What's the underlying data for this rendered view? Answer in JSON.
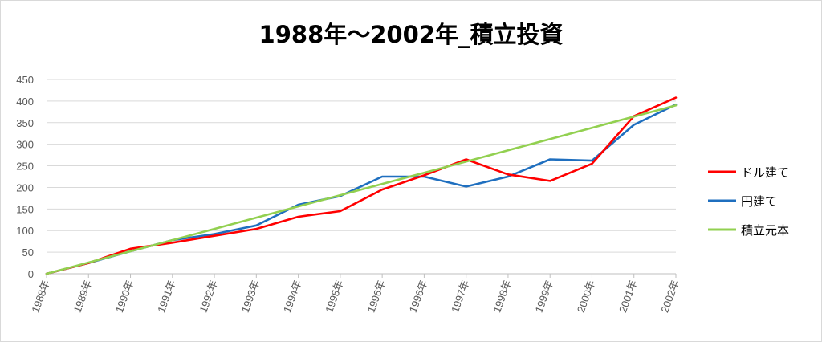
{
  "chart_data": {
    "type": "line",
    "title": "1988年～2002年_積立投資",
    "xlabel": "",
    "ylabel": "",
    "ylim": [
      0,
      450
    ],
    "yticks": [
      0,
      50,
      100,
      150,
      200,
      250,
      300,
      350,
      400,
      450
    ],
    "grid": true,
    "legend_position": "right",
    "x_tick_labels": [
      "1988年",
      "1989年",
      "1990年",
      "1991年",
      "1992年",
      "1993年",
      "1994年",
      "1995年",
      "1996年",
      "1996年",
      "1997年",
      "1998年",
      "1999年",
      "2000年",
      "2001年",
      "2002年"
    ],
    "x": [
      0,
      1,
      2,
      3,
      4,
      5,
      6,
      7,
      8,
      9,
      10,
      11,
      12,
      13,
      14,
      15
    ],
    "series": [
      {
        "name": "ドル建て",
        "color": "#ff0000",
        "values": [
          0,
          25,
          58,
          72,
          88,
          104,
          132,
          145,
          195,
          228,
          265,
          230,
          215,
          255,
          365,
          408
        ]
      },
      {
        "name": "円建て",
        "color": "#1f6fbf",
        "values": [
          0,
          25,
          52,
          78,
          92,
          112,
          160,
          180,
          225,
          225,
          202,
          225,
          265,
          262,
          345,
          392
        ]
      },
      {
        "name": "積立元本",
        "color": "#92d050",
        "values": [
          0,
          26,
          52,
          78,
          104,
          130,
          156,
          182,
          208,
          234,
          260,
          286,
          312,
          338,
          364,
          390
        ]
      }
    ]
  }
}
